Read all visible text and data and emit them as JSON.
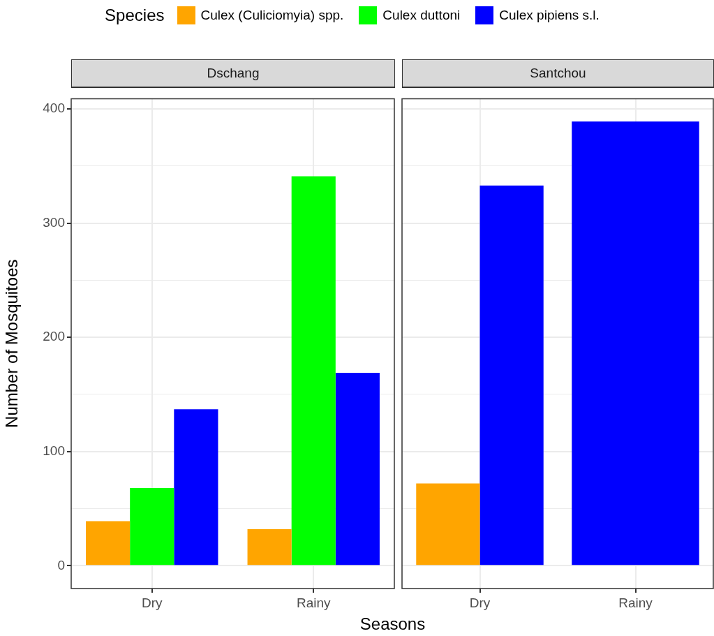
{
  "chart_data": [
    {
      "type": "bar",
      "title": "Dschang",
      "xlabel": "Seasons",
      "ylabel": "Number of Mosquitoes",
      "legend_title": "Species",
      "legend": "top",
      "categories": [
        "Dry",
        "Rainy"
      ],
      "series": [
        {
          "name": "Culex (Culiciomyia) spp.",
          "color": "#ffa500",
          "values": [
            39,
            32
          ]
        },
        {
          "name": "Culex duttoni",
          "color": "#00ff00",
          "values": [
            68,
            341
          ]
        },
        {
          "name": "Culex pipiens s.l.",
          "color": "#0000ff",
          "values": [
            137,
            169
          ]
        }
      ],
      "ylim": [
        -20,
        409
      ],
      "yticks": [
        0,
        {
          "value": 50,
          "label": null
        },
        100,
        {
          "value": 150,
          "label": null
        },
        200,
        {
          "value": 250,
          "label": null
        },
        300,
        {
          "value": 350,
          "label": null
        },
        400
      ],
      "grid": true
    },
    {
      "type": "bar",
      "title": "Santchou",
      "legend": false,
      "tick_labels": "x",
      "categories": [
        "Dry",
        "Rainy"
      ],
      "series": [
        {
          "color": "#ffa500",
          "values": [
            72,
            null
          ]
        },
        {
          "color": "#00ff00",
          "values": [
            null,
            null
          ]
        },
        {
          "color": "#0000ff",
          "values": [
            333,
            389
          ]
        }
      ],
      "ylim": [
        -20,
        409
      ],
      "yticks": [
        0,
        {
          "value": 50,
          "label": null
        },
        100,
        {
          "value": 150,
          "label": null
        },
        200,
        {
          "value": 250,
          "label": null
        },
        300,
        {
          "value": 350,
          "label": null
        },
        400
      ],
      "grid": true
    }
  ]
}
